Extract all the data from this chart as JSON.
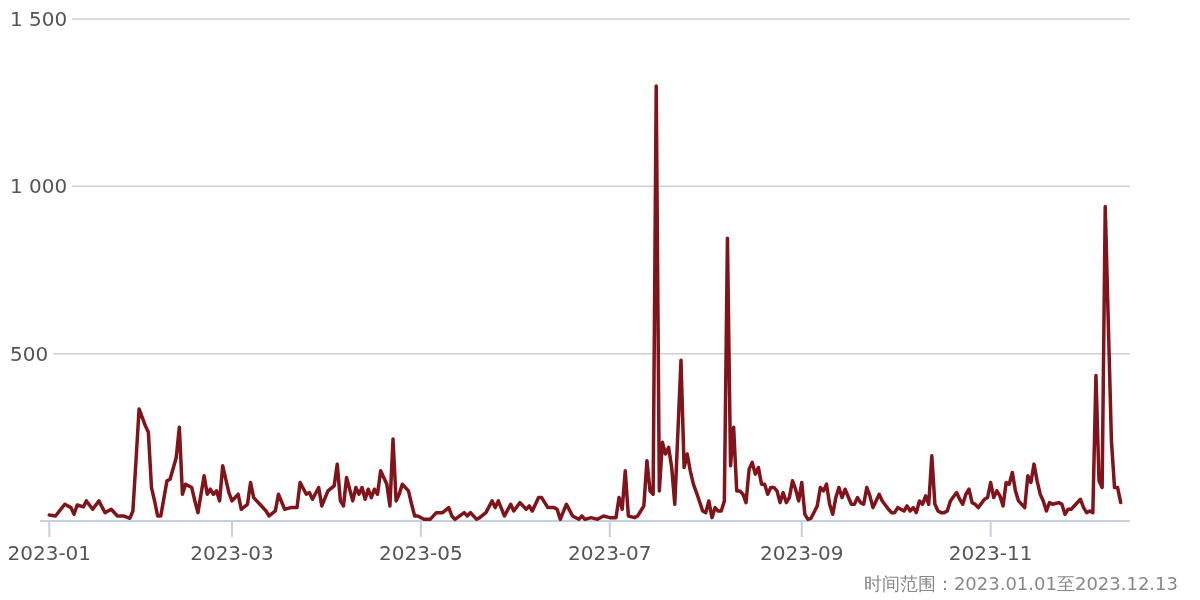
{
  "chart_data": {
    "type": "line",
    "x": [
      "2023-01-01",
      "2023-01-03",
      "2023-01-06",
      "2023-01-08",
      "2023-01-09",
      "2023-01-10",
      "2023-01-12",
      "2023-01-13",
      "2023-01-15",
      "2023-01-17",
      "2023-01-19",
      "2023-01-21",
      "2023-01-23",
      "2023-01-25",
      "2023-01-27",
      "2023-01-28",
      "2023-01-29",
      "2023-01-30",
      "2023-02-01",
      "2023-02-02",
      "2023-02-03",
      "2023-02-04",
      "2023-02-05",
      "2023-02-06",
      "2023-02-08",
      "2023-02-09",
      "2023-02-11",
      "2023-02-12",
      "2023-02-13",
      "2023-02-14",
      "2023-02-16",
      "2023-02-17",
      "2023-02-18",
      "2023-02-20",
      "2023-02-21",
      "2023-02-22",
      "2023-02-23",
      "2023-02-24",
      "2023-02-25",
      "2023-02-26",
      "2023-02-28",
      "2023-03-01",
      "2023-03-03",
      "2023-03-04",
      "2023-03-06",
      "2023-03-07",
      "2023-03-08",
      "2023-03-10",
      "2023-03-12",
      "2023-03-13",
      "2023-03-15",
      "2023-03-16",
      "2023-03-18",
      "2023-03-20",
      "2023-03-22",
      "2023-03-23",
      "2023-03-25",
      "2023-03-26",
      "2023-03-27",
      "2023-03-29",
      "2023-03-30",
      "2023-04-01",
      "2023-04-03",
      "2023-04-04",
      "2023-04-05",
      "2023-04-06",
      "2023-04-07",
      "2023-04-08",
      "2023-04-09",
      "2023-04-10",
      "2023-04-11",
      "2023-04-12",
      "2023-04-13",
      "2023-04-14",
      "2023-04-15",
      "2023-04-16",
      "2023-04-17",
      "2023-04-18",
      "2023-04-20",
      "2023-04-21",
      "2023-04-22",
      "2023-04-23",
      "2023-04-24",
      "2023-04-25",
      "2023-04-27",
      "2023-04-28",
      "2023-04-29",
      "2023-04-30",
      "2023-05-02",
      "2023-05-04",
      "2023-05-06",
      "2023-05-08",
      "2023-05-10",
      "2023-05-11",
      "2023-05-12",
      "2023-05-15",
      "2023-05-16",
      "2023-05-17",
      "2023-05-19",
      "2023-05-20",
      "2023-05-22",
      "2023-05-24",
      "2023-05-25",
      "2023-05-26",
      "2023-05-28",
      "2023-05-30",
      "2023-05-31",
      "2023-06-02",
      "2023-06-04",
      "2023-06-05",
      "2023-06-06",
      "2023-06-08",
      "2023-06-09",
      "2023-06-11",
      "2023-06-13",
      "2023-06-14",
      "2023-06-15",
      "2023-06-17",
      "2023-06-19",
      "2023-06-21",
      "2023-06-22",
      "2023-06-23",
      "2023-06-25",
      "2023-06-27",
      "2023-06-29",
      "2023-07-01",
      "2023-07-03",
      "2023-07-04",
      "2023-07-05",
      "2023-07-06",
      "2023-07-07",
      "2023-07-09",
      "2023-07-10",
      "2023-07-12",
      "2023-07-13",
      "2023-07-14",
      "2023-07-15",
      "2023-07-16",
      "2023-07-17",
      "2023-07-18",
      "2023-07-19",
      "2023-07-20",
      "2023-07-21",
      "2023-07-22",
      "2023-07-24",
      "2023-07-25",
      "2023-07-26",
      "2023-07-27",
      "2023-07-28",
      "2023-07-29",
      "2023-07-31",
      "2023-08-01",
      "2023-08-02",
      "2023-08-03",
      "2023-08-04",
      "2023-08-05",
      "2023-08-06",
      "2023-08-07",
      "2023-08-08",
      "2023-08-09",
      "2023-08-10",
      "2023-08-11",
      "2023-08-12",
      "2023-08-13",
      "2023-08-14",
      "2023-08-15",
      "2023-08-16",
      "2023-08-17",
      "2023-08-18",
      "2023-08-19",
      "2023-08-20",
      "2023-08-21",
      "2023-08-22",
      "2023-08-23",
      "2023-08-24",
      "2023-08-25",
      "2023-08-26",
      "2023-08-27",
      "2023-08-28",
      "2023-08-29",
      "2023-08-30",
      "2023-08-31",
      "2023-09-01",
      "2023-09-02",
      "2023-09-03",
      "2023-09-04",
      "2023-09-06",
      "2023-09-07",
      "2023-09-08",
      "2023-09-09",
      "2023-09-10",
      "2023-09-11",
      "2023-09-12",
      "2023-09-13",
      "2023-09-14",
      "2023-09-15",
      "2023-09-17",
      "2023-09-18",
      "2023-09-19",
      "2023-09-20",
      "2023-09-21",
      "2023-09-22",
      "2023-09-23",
      "2023-09-24",
      "2023-09-25",
      "2023-09-26",
      "2023-09-27",
      "2023-09-29",
      "2023-09-30",
      "2023-10-01",
      "2023-10-02",
      "2023-10-04",
      "2023-10-05",
      "2023-10-06",
      "2023-10-07",
      "2023-10-08",
      "2023-10-09",
      "2023-10-10",
      "2023-10-11",
      "2023-10-12",
      "2023-10-13",
      "2023-10-14",
      "2023-10-15",
      "2023-10-16",
      "2023-10-17",
      "2023-10-18",
      "2023-10-19",
      "2023-10-21",
      "2023-10-22",
      "2023-10-23",
      "2023-10-24",
      "2023-10-25",
      "2023-10-26",
      "2023-10-27",
      "2023-10-28",
      "2023-10-30",
      "2023-10-31",
      "2023-11-01",
      "2023-11-02",
      "2023-11-03",
      "2023-11-04",
      "2023-11-05",
      "2023-11-06",
      "2023-11-07",
      "2023-11-08",
      "2023-11-09",
      "2023-11-10",
      "2023-11-12",
      "2023-11-13",
      "2023-11-14",
      "2023-11-15",
      "2023-11-16",
      "2023-11-17",
      "2023-11-18",
      "2023-11-19",
      "2023-11-20",
      "2023-11-21",
      "2023-11-23",
      "2023-11-24",
      "2023-11-25",
      "2023-11-26",
      "2023-11-27",
      "2023-11-28",
      "2023-11-30",
      "2023-12-01",
      "2023-12-02",
      "2023-12-03",
      "2023-12-04",
      "2023-12-05",
      "2023-12-06",
      "2023-12-07",
      "2023-12-08",
      "2023-12-10",
      "2023-12-11",
      "2023-12-12",
      "2023-12-13"
    ],
    "series": [
      {
        "color": "#80141a",
        "values": [
          18,
          15,
          50,
          40,
          20,
          48,
          42,
          60,
          35,
          60,
          25,
          35,
          15,
          15,
          8,
          30,
          180,
          335,
          285,
          265,
          100,
          60,
          15,
          15,
          120,
          125,
          190,
          280,
          80,
          110,
          100,
          60,
          25,
          135,
          80,
          95,
          80,
          90,
          60,
          165,
          85,
          60,
          80,
          35,
          50,
          115,
          70,
          50,
          30,
          15,
          30,
          80,
          35,
          40,
          40,
          115,
          80,
          85,
          65,
          100,
          45,
          90,
          105,
          170,
          60,
          45,
          130,
          95,
          60,
          100,
          80,
          100,
          65,
          95,
          70,
          95,
          80,
          150,
          110,
          45,
          245,
          60,
          80,
          110,
          90,
          50,
          15,
          15,
          5,
          5,
          25,
          25,
          40,
          15,
          5,
          25,
          15,
          25,
          5,
          10,
          25,
          60,
          40,
          60,
          15,
          50,
          30,
          55,
          35,
          45,
          30,
          70,
          70,
          40,
          40,
          35,
          5,
          50,
          15,
          5,
          15,
          5,
          10,
          5,
          15,
          10,
          10,
          70,
          35,
          150,
          15,
          10,
          15,
          45,
          180,
          90,
          80,
          1300,
          90,
          235,
          200,
          220,
          160,
          50,
          480,
          160,
          200,
          150,
          110,
          85,
          30,
          25,
          60,
          10,
          40,
          30,
          30,
          60,
          845,
          165,
          280,
          90,
          90,
          80,
          55,
          155,
          175,
          140,
          160,
          110,
          110,
          80,
          100,
          100,
          90,
          55,
          85,
          55,
          70,
          120,
          95,
          60,
          115,
          20,
          5,
          8,
          45,
          100,
          90,
          110,
          50,
          20,
          70,
          100,
          70,
          95,
          50,
          50,
          70,
          55,
          50,
          100,
          75,
          40,
          60,
          80,
          60,
          35,
          25,
          25,
          40,
          30,
          45,
          30,
          40,
          25,
          60,
          50,
          75,
          50,
          195,
          50,
          30,
          25,
          25,
          30,
          60,
          85,
          65,
          50,
          80,
          95,
          55,
          50,
          40,
          65,
          70,
          115,
          70,
          90,
          75,
          45,
          115,
          110,
          145,
          90,
          60,
          40,
          135,
          115,
          170,
          120,
          80,
          60,
          30,
          55,
          50,
          55,
          50,
          20,
          35,
          35,
          45,
          65,
          40,
          25,
          30,
          25,
          435,
          120,
          100,
          940,
          240,
          100,
          100,
          55
        ]
      }
    ],
    "xlim": [
      "2022-12-29",
      "2023-12-16"
    ],
    "xticks": [
      {
        "value": "2023-01-01",
        "label": "2023-01"
      },
      {
        "value": "2023-03-01",
        "label": "2023-03"
      },
      {
        "value": "2023-05-01",
        "label": "2023-05"
      },
      {
        "value": "2023-07-01",
        "label": "2023-07"
      },
      {
        "value": "2023-09-01",
        "label": "2023-09"
      },
      {
        "value": "2023-11-01",
        "label": "2023-11"
      }
    ],
    "ylim": [
      0,
      1500
    ],
    "yticks": [
      500,
      {
        "value": 1000,
        "label": "1 000"
      },
      {
        "value": 1500,
        "label": "1 500"
      }
    ],
    "grid": "y",
    "line_style": "solid",
    "annotations": [
      "时间范围：2023.01.01至2023.12.13"
    ]
  }
}
